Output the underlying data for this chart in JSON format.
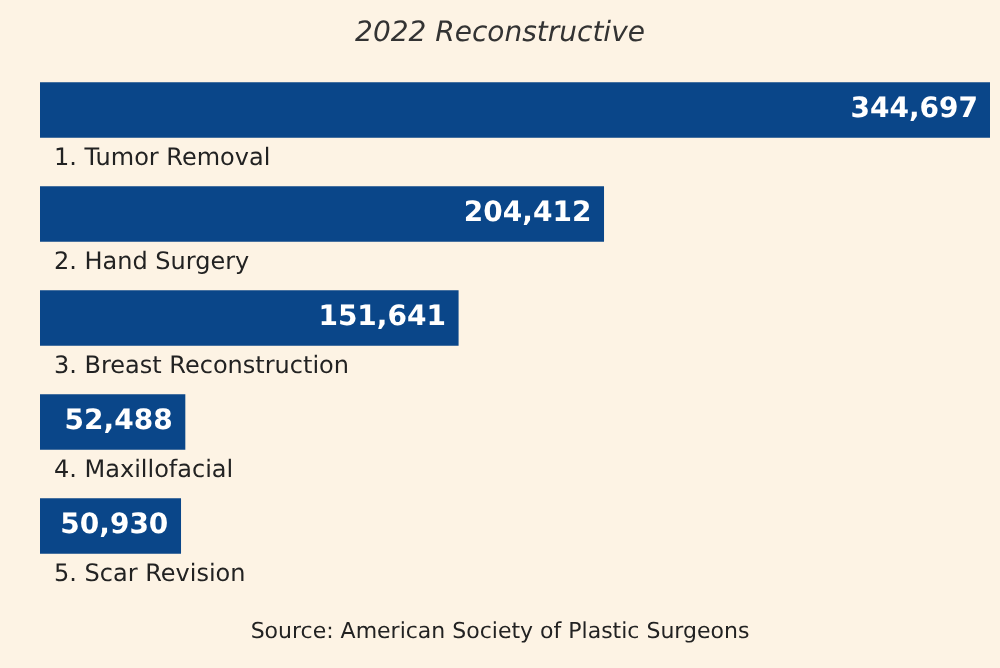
{
  "chart_data": {
    "type": "bar",
    "orientation": "horizontal",
    "title": "2022 Reconstructive",
    "categories": [
      "1. Tumor Removal",
      "2. Hand Surgery",
      "3. Breast Reconstruction",
      "4. Maxillofacial",
      "5. Scar Revision"
    ],
    "values": [
      344697,
      204412,
      151641,
      52488,
      50930
    ],
    "value_labels": [
      "344,697",
      "204,412",
      "151,641",
      "52,488",
      "50,930"
    ],
    "color": "#0a4689",
    "legend": false,
    "annotations": [
      "Source: American Society of Plastic Surgeons"
    ]
  }
}
